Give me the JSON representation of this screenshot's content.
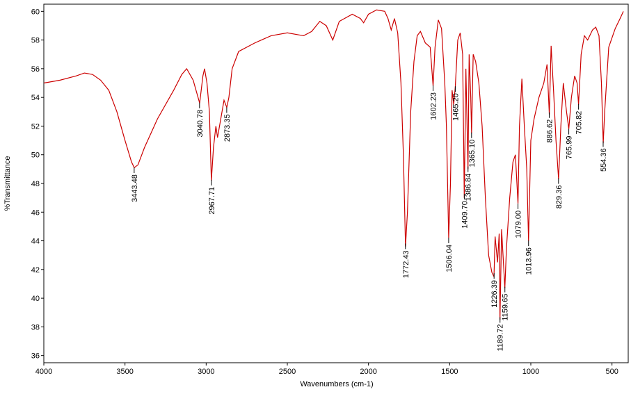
{
  "chart_data": {
    "type": "line",
    "x_label": "Wavenumbers (cm-1)",
    "y_label": "%Transmittance",
    "xlim": [
      4000,
      400
    ],
    "ylim": [
      35.5,
      60.5
    ],
    "xticks": [
      4000,
      3500,
      3000,
      2500,
      2000,
      1500,
      1000,
      500
    ],
    "yticks": [
      36,
      38,
      40,
      42,
      44,
      46,
      48,
      50,
      52,
      54,
      56,
      58,
      60
    ],
    "grid": false,
    "series": [
      {
        "color": "#cc0000",
        "x": [
          4000,
          3900,
          3800,
          3750,
          3700,
          3650,
          3600,
          3550,
          3500,
          3460,
          3443,
          3420,
          3380,
          3300,
          3200,
          3150,
          3120,
          3080,
          3050,
          3040,
          3020,
          3010,
          2995,
          2980,
          2968,
          2955,
          2940,
          2930,
          2910,
          2890,
          2873,
          2860,
          2840,
          2800,
          2700,
          2600,
          2500,
          2400,
          2350,
          2300,
          2260,
          2220,
          2180,
          2100,
          2050,
          2030,
          2000,
          1950,
          1900,
          1880,
          1860,
          1840,
          1820,
          1800,
          1785,
          1772,
          1760,
          1740,
          1720,
          1700,
          1680,
          1650,
          1620,
          1602,
          1590,
          1570,
          1550,
          1530,
          1520,
          1506,
          1495,
          1485,
          1475,
          1465,
          1450,
          1435,
          1420,
          1410,
          1400,
          1387,
          1380,
          1370,
          1365,
          1355,
          1340,
          1320,
          1300,
          1280,
          1260,
          1240,
          1227,
          1220,
          1205,
          1195,
          1190,
          1180,
          1160,
          1150,
          1130,
          1110,
          1095,
          1079,
          1070,
          1055,
          1040,
          1025,
          1014,
          1000,
          980,
          950,
          920,
          900,
          886,
          875,
          860,
          845,
          829,
          815,
          800,
          780,
          766,
          750,
          730,
          715,
          706,
          690,
          670,
          650,
          620,
          600,
          580,
          565,
          554,
          545,
          520,
          480,
          450,
          430
        ],
        "values": [
          55.0,
          55.2,
          55.5,
          55.7,
          55.6,
          55.2,
          54.5,
          53.0,
          51.0,
          49.5,
          49.1,
          49.3,
          50.5,
          52.5,
          54.5,
          55.6,
          56.0,
          55.2,
          54.0,
          53.6,
          55.5,
          56.0,
          55.0,
          53.0,
          48.2,
          50.5,
          52.0,
          51.2,
          52.5,
          53.8,
          53.3,
          54.0,
          56.0,
          57.2,
          57.8,
          58.3,
          58.5,
          58.3,
          58.6,
          59.3,
          59.0,
          58.0,
          59.3,
          59.8,
          59.5,
          59.2,
          59.8,
          60.1,
          60.0,
          59.5,
          58.7,
          59.5,
          58.5,
          55.0,
          50.0,
          43.6,
          46.0,
          53.0,
          56.5,
          58.3,
          58.6,
          57.8,
          57.5,
          54.8,
          57.5,
          59.4,
          58.8,
          55.0,
          52.0,
          44.2,
          48.0,
          54.5,
          53.5,
          54.8,
          58.0,
          58.5,
          57.0,
          47.0,
          56.0,
          49.0,
          57.0,
          54.0,
          51.5,
          57.0,
          56.5,
          55.0,
          52.0,
          47.0,
          43.0,
          41.8,
          41.5,
          44.3,
          42.5,
          44.5,
          38.5,
          44.8,
          40.7,
          43.5,
          47.0,
          49.5,
          50.0,
          46.6,
          52.0,
          55.3,
          52.0,
          49.0,
          44.0,
          51.0,
          52.5,
          54.0,
          55.0,
          56.3,
          52.8,
          57.6,
          54.5,
          51.0,
          48.3,
          52.0,
          55.0,
          53.0,
          51.8,
          54.0,
          55.5,
          55.0,
          53.5,
          57.0,
          58.3,
          58.0,
          58.7,
          58.9,
          58.3,
          55.0,
          50.8,
          53.0,
          57.5,
          58.8,
          59.5,
          60.0
        ]
      }
    ],
    "annotations": [
      {
        "text": "3443.48",
        "x": 3443.48
      },
      {
        "text": "3040.78",
        "x": 3040.78
      },
      {
        "text": "2967.71",
        "x": 2967.71
      },
      {
        "text": "2873.35",
        "x": 2873.35
      },
      {
        "text": "1772.43",
        "x": 1772.43
      },
      {
        "text": "1602.23",
        "x": 1602.23
      },
      {
        "text": "1506.04",
        "x": 1506.04
      },
      {
        "text": "1465.20",
        "x": 1465.2
      },
      {
        "text": "1409.70",
        "x": 1409.7
      },
      {
        "text": "1386.84",
        "x": 1386.84
      },
      {
        "text": "1365.10",
        "x": 1365.1
      },
      {
        "text": "1226.39",
        "x": 1226.39
      },
      {
        "text": "1189.72",
        "x": 1189.72
      },
      {
        "text": "1159.65",
        "x": 1159.65
      },
      {
        "text": "1079.00",
        "x": 1079.0
      },
      {
        "text": "1013.96",
        "x": 1013.96
      },
      {
        "text": "886.62",
        "x": 886.62
      },
      {
        "text": "829.36",
        "x": 829.36
      },
      {
        "text": "765.99",
        "x": 765.99
      },
      {
        "text": "705.82",
        "x": 705.82
      },
      {
        "text": "554.36",
        "x": 554.36
      }
    ]
  }
}
